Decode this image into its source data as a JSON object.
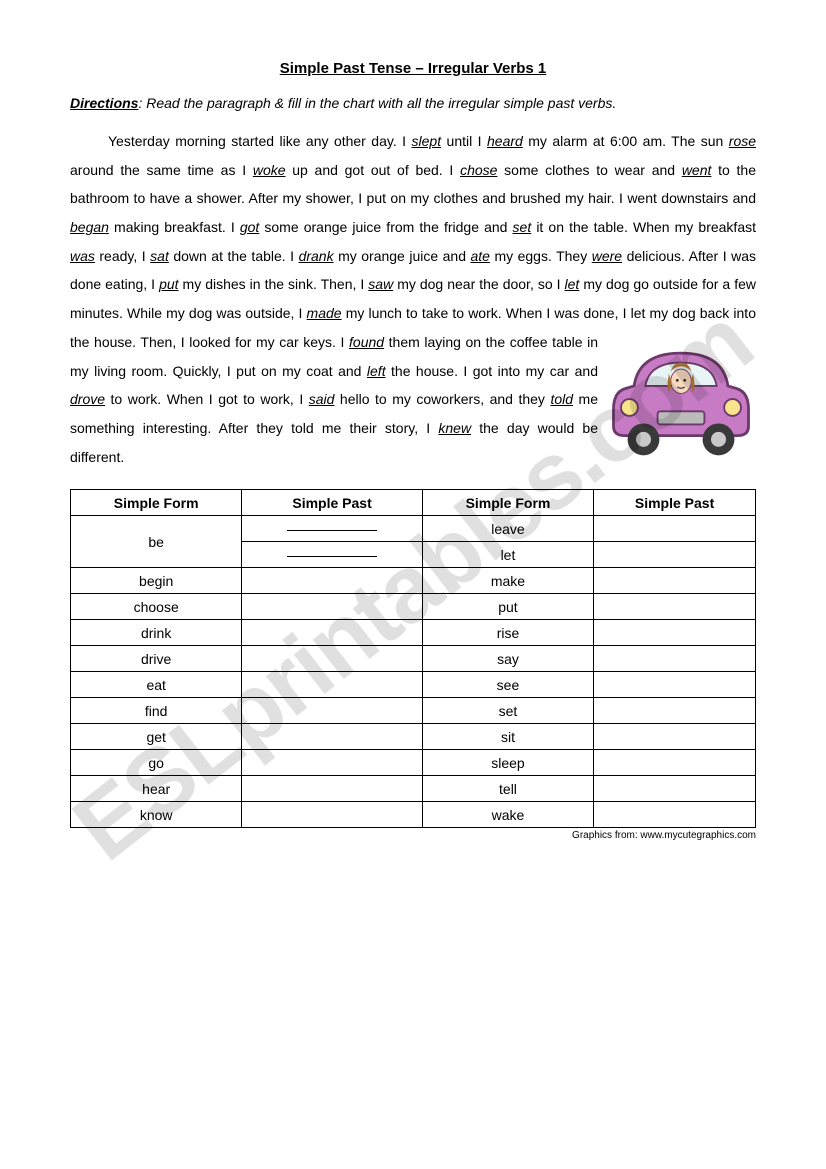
{
  "title": "Simple Past Tense – Irregular Verbs 1",
  "directions": {
    "label": "Directions",
    "text": ": Read the paragraph & fill in the chart with all the irregular simple past verbs."
  },
  "paragraph_parts": [
    {
      "t": "indent"
    },
    {
      "t": "txt",
      "v": "Yesterday morning started like any other day. I "
    },
    {
      "t": "verb",
      "v": "slept"
    },
    {
      "t": "txt",
      "v": " until I "
    },
    {
      "t": "verb",
      "v": "heard"
    },
    {
      "t": "txt",
      "v": " my alarm at 6:00 am. The sun "
    },
    {
      "t": "verb",
      "v": "rose"
    },
    {
      "t": "txt",
      "v": " around the same time as I "
    },
    {
      "t": "verb",
      "v": "woke"
    },
    {
      "t": "txt",
      "v": " up and got out of bed. I "
    },
    {
      "t": "verb",
      "v": "chose"
    },
    {
      "t": "txt",
      "v": " some clothes to wear and "
    },
    {
      "t": "verb",
      "v": "went"
    },
    {
      "t": "txt",
      "v": " to the bathroom to have a shower. After my shower, I put on my clothes and brushed my hair. I went downstairs and "
    },
    {
      "t": "verb",
      "v": "began"
    },
    {
      "t": "txt",
      "v": " making breakfast. I "
    },
    {
      "t": "verb",
      "v": "got"
    },
    {
      "t": "txt",
      "v": " some orange juice from the fridge and "
    },
    {
      "t": "verb",
      "v": "set"
    },
    {
      "t": "txt",
      "v": " it on the table. When my breakfast "
    },
    {
      "t": "verb",
      "v": "was"
    },
    {
      "t": "txt",
      "v": " ready, I "
    },
    {
      "t": "verb",
      "v": "sat"
    },
    {
      "t": "txt",
      "v": " down at the table. I "
    },
    {
      "t": "verb",
      "v": "drank"
    },
    {
      "t": "txt",
      "v": " my orange juice and "
    },
    {
      "t": "verb",
      "v": "ate"
    },
    {
      "t": "txt",
      "v": " my eggs. They "
    },
    {
      "t": "verb",
      "v": "were"
    },
    {
      "t": "txt",
      "v": " delicious. After I was done eating, I "
    },
    {
      "t": "verb",
      "v": "put"
    },
    {
      "t": "txt",
      "v": " my dishes in the sink. Then, I "
    },
    {
      "t": "verb",
      "v": "saw"
    },
    {
      "t": "txt",
      "v": " my dog near the door, so I "
    },
    {
      "t": "verb",
      "v": "let"
    },
    {
      "t": "txt",
      "v": " my dog go outside for a few minutes. While my dog was outside, I "
    },
    {
      "t": "verb",
      "v": "made"
    },
    {
      "t": "txt",
      "v": " my lunch to take to work. When I was done, I let my dog back into the house. Then, I looked for my car keys. I "
    },
    {
      "t": "verb",
      "v": "found"
    },
    {
      "t": "txt",
      "v": " "
    },
    {
      "t": "car"
    },
    {
      "t": "txt",
      "v": "them laying on the coffee table in my living room. Quickly, I put on my coat and "
    },
    {
      "t": "verb",
      "v": "left"
    },
    {
      "t": "txt",
      "v": " the house. I got into my car and "
    },
    {
      "t": "verb",
      "v": "drove"
    },
    {
      "t": "txt",
      "v": " to work. When I got to work, I "
    },
    {
      "t": "verb",
      "v": "said"
    },
    {
      "t": "txt",
      "v": " hello to my coworkers, and they "
    },
    {
      "t": "verb",
      "v": "told"
    },
    {
      "t": "txt",
      "v": " me something interesting. After they told me their story, I "
    },
    {
      "t": "verb",
      "v": "knew"
    },
    {
      "t": "txt",
      "v": " the day would be different."
    }
  ],
  "table": {
    "headers": [
      "Simple Form",
      "Simple Past",
      "Simple Form",
      "Simple Past"
    ],
    "rows": [
      {
        "l": "be",
        "r": "leave",
        "be_rowspan": true
      },
      {
        "l": "",
        "r": "let",
        "be_second": true
      },
      {
        "l": "begin",
        "r": "make"
      },
      {
        "l": "choose",
        "r": "put"
      },
      {
        "l": "drink",
        "r": "rise"
      },
      {
        "l": "drive",
        "r": "say"
      },
      {
        "l": "eat",
        "r": "see"
      },
      {
        "l": "find",
        "r": "set"
      },
      {
        "l": "get",
        "r": "sit"
      },
      {
        "l": "go",
        "r": "sleep"
      },
      {
        "l": "hear",
        "r": "tell"
      },
      {
        "l": "know",
        "r": "wake"
      }
    ]
  },
  "credit": "Graphics from: www.mycutegraphics.com",
  "watermark": "ESLprintables.com",
  "car_svg": {
    "body_fill": "#c77bc4",
    "body_stroke": "#6c3a6a",
    "window_fill": "#e9f4f6",
    "tire_fill": "#3a3a3a",
    "hub_fill": "#c9c9c9",
    "face_fill": "#f7d9bf",
    "hair_fill": "#b57a3a",
    "light_fill": "#f8e48a"
  }
}
